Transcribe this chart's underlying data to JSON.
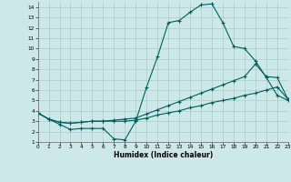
{
  "xlabel": "Humidex (Indice chaleur)",
  "xlim": [
    0,
    23
  ],
  "ylim": [
    1,
    14.5
  ],
  "xticks": [
    0,
    1,
    2,
    3,
    4,
    5,
    6,
    7,
    8,
    9,
    10,
    11,
    12,
    13,
    14,
    15,
    16,
    17,
    18,
    19,
    20,
    21,
    22,
    23
  ],
  "yticks": [
    1,
    2,
    3,
    4,
    5,
    6,
    7,
    8,
    9,
    10,
    11,
    12,
    13,
    14
  ],
  "bg_color": "#cce8e8",
  "grid_color": "#aacccc",
  "line_color": "#006060",
  "line1_x": [
    0,
    1,
    2,
    3,
    4,
    5,
    6,
    7,
    8,
    9,
    10,
    11,
    12,
    13,
    14,
    15,
    16,
    17,
    18,
    19,
    20,
    21,
    22,
    23
  ],
  "line1_y": [
    3.8,
    3.2,
    2.7,
    2.2,
    2.3,
    2.3,
    2.3,
    1.3,
    1.2,
    3.0,
    6.3,
    9.2,
    12.5,
    12.7,
    13.5,
    14.2,
    14.3,
    12.5,
    10.2,
    10.0,
    8.8,
    7.2,
    5.5,
    5.0
  ],
  "line2_x": [
    0,
    1,
    2,
    3,
    4,
    5,
    6,
    7,
    8,
    9,
    10,
    11,
    12,
    13,
    14,
    15,
    16,
    17,
    18,
    19,
    20,
    21,
    22,
    23
  ],
  "line2_y": [
    3.8,
    3.2,
    2.9,
    2.8,
    2.9,
    3.0,
    3.0,
    3.1,
    3.2,
    3.3,
    3.7,
    4.1,
    4.5,
    4.9,
    5.3,
    5.7,
    6.1,
    6.5,
    6.9,
    7.3,
    8.5,
    7.3,
    7.2,
    5.1
  ],
  "line3_x": [
    0,
    1,
    2,
    3,
    4,
    5,
    6,
    7,
    8,
    9,
    10,
    11,
    12,
    13,
    14,
    15,
    16,
    17,
    18,
    19,
    20,
    21,
    22,
    23
  ],
  "line3_y": [
    3.8,
    3.2,
    2.9,
    2.8,
    2.9,
    3.0,
    3.0,
    3.0,
    3.0,
    3.1,
    3.3,
    3.6,
    3.8,
    4.0,
    4.3,
    4.5,
    4.8,
    5.0,
    5.2,
    5.5,
    5.7,
    6.0,
    6.3,
    5.1
  ]
}
